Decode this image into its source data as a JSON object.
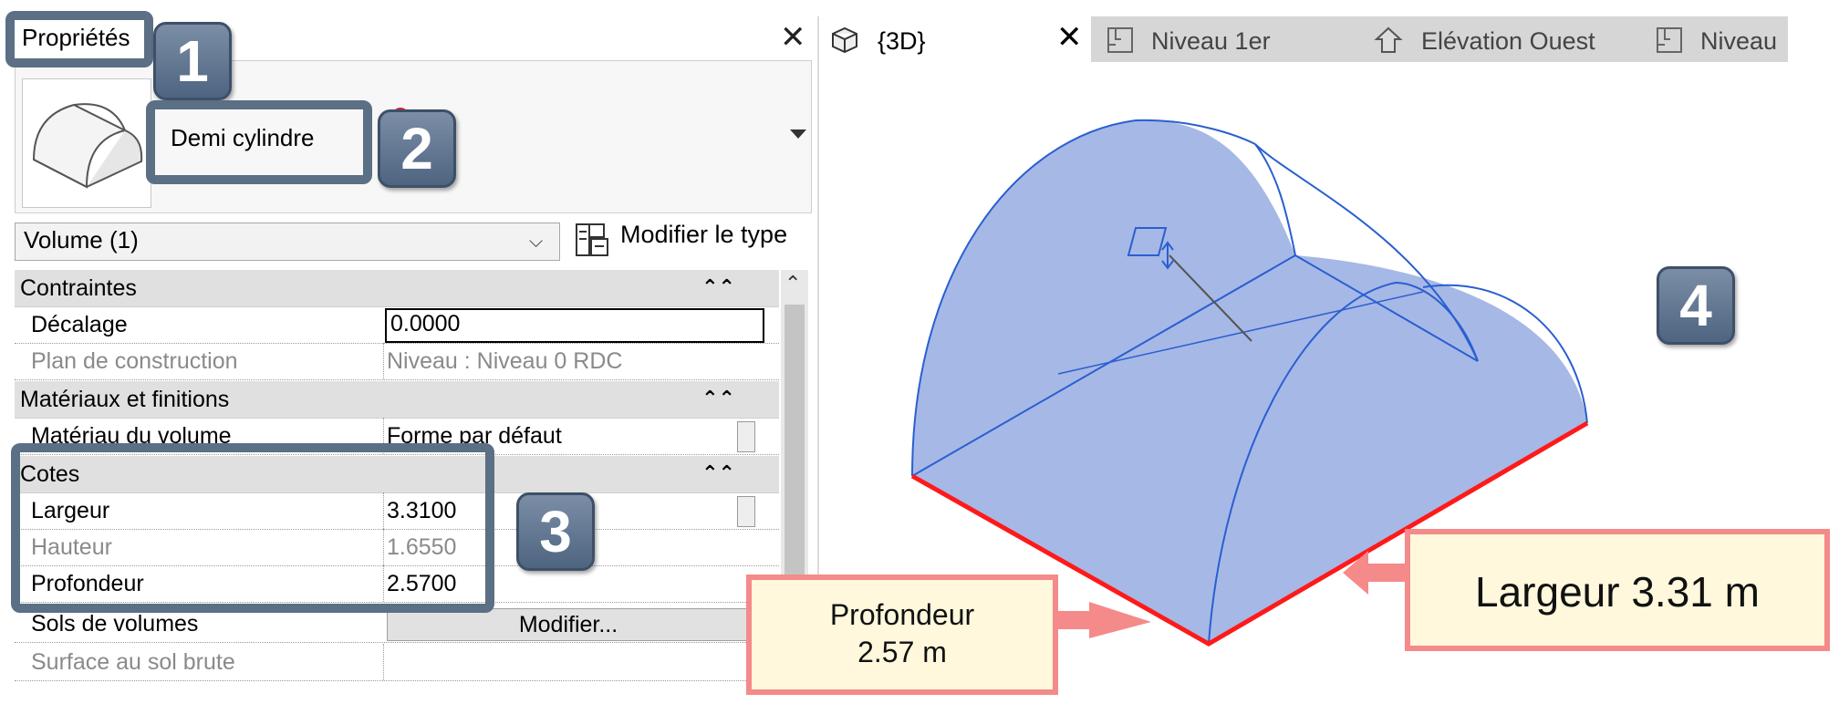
{
  "properties_panel": {
    "title": "Propriétés",
    "type_name": "Demi cylindre",
    "selector_value": "Volume (1)",
    "edit_type_label": "Modifier le type",
    "sections": {
      "constraints": {
        "label": "Contraintes",
        "offset_label": "Décalage",
        "offset_value": "0.0000",
        "work_plane_label": "Plan de construction",
        "work_plane_value": "Niveau : Niveau 0 RDC"
      },
      "materials": {
        "label": "Matériaux et finitions",
        "material_label": "Matériau du volume",
        "material_value": "Forme par défaut"
      },
      "dimensions": {
        "label": "Cotes",
        "width_label": "Largeur",
        "width_value": "3.3100",
        "height_label": "Hauteur",
        "height_value": "1.6550",
        "depth_label": "Profondeur",
        "depth_value": "2.5700",
        "floors_label": "Sols de volumes",
        "floors_button": "Modifier...",
        "gross_area_label": "Surface au sol brute"
      }
    }
  },
  "tabs": [
    {
      "label": "{3D}",
      "icon": "cube-icon",
      "active": true
    },
    {
      "label": "Niveau 1er",
      "icon": "floor-plan-icon",
      "active": false
    },
    {
      "label": "Elévation Ouest",
      "icon": "elevation-icon",
      "active": false
    },
    {
      "label": "Niveau",
      "icon": "floor-plan-icon",
      "active": false
    }
  ],
  "badges": [
    "1",
    "2",
    "3",
    "4"
  ],
  "annotations": {
    "depth_line1": "Profondeur",
    "depth_line2": "2.57 m",
    "width": "Largeur 3.31 m"
  },
  "colors": {
    "callout_frame": "#5b6f85",
    "annotation_border": "#f58a8a",
    "annotation_fill": "#fff8dc",
    "volume_fill": "#a6b8e6",
    "volume_edge": "#2a5fd0",
    "highlight_edge": "#ff1a1a"
  }
}
